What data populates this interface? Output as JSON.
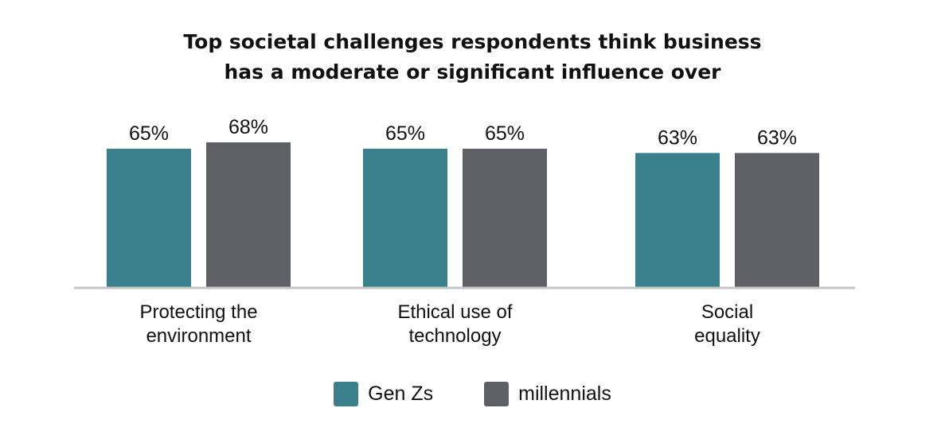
{
  "chart_data": {
    "type": "bar",
    "title_lines": [
      "Top societal challenges respondents think business",
      "has a moderate or significant influence over"
    ],
    "categories": [
      [
        "Protecting the",
        "environment"
      ],
      [
        "Ethical use of",
        "technology"
      ],
      [
        "Social",
        "equality"
      ]
    ],
    "series": [
      {
        "name": "Gen Zs",
        "values": [
          65,
          65,
          63
        ],
        "color": "#3a7f8c"
      },
      {
        "name": "millennials",
        "values": [
          68,
          65,
          63
        ],
        "color": "#5f6065"
      }
    ],
    "value_suffix": "%",
    "ylim": [
      0,
      68
    ],
    "baseline_color": "#c6c6c6",
    "grid": false,
    "legend_position": "bottom"
  }
}
